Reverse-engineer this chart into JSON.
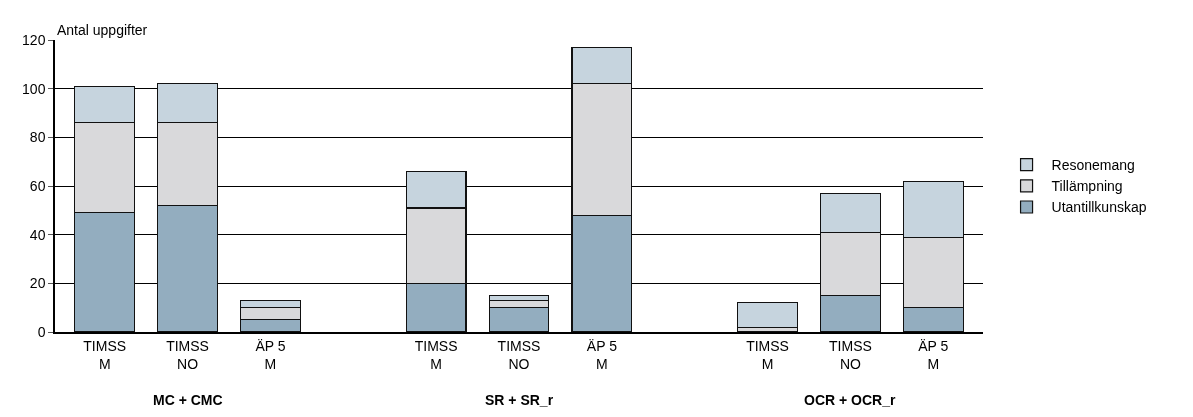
{
  "chart_data": {
    "type": "bar",
    "stacked": true,
    "ylabel": "Antal uppgifter",
    "categories": [
      "TIMSS M",
      "TIMSS NO",
      "ÄP 5 M",
      null,
      "TIMSS M",
      "TIMSS NO",
      "ÄP 5 M",
      null,
      "TIMSS M",
      "TIMSS NO",
      "ÄP 5 M"
    ],
    "series": [
      {
        "name": "Utantillkunskap",
        "color": "#93adbf",
        "values": [
          49,
          52,
          5,
          null,
          20,
          10,
          48,
          null,
          0,
          15,
          10
        ]
      },
      {
        "name": "Tillämpning",
        "color": "#d9d9db",
        "values": [
          37,
          34,
          5,
          null,
          31,
          3,
          54,
          null,
          2,
          26,
          29
        ]
      },
      {
        "name": "Resonemang",
        "color": "#c6d4de",
        "values": [
          15,
          16,
          3,
          null,
          15,
          2,
          15,
          null,
          10,
          16,
          23
        ]
      }
    ],
    "annotations": [
      "MC + CMC",
      "SR + SR_r",
      "OCR + OCR_r"
    ],
    "ylim": [
      0,
      120
    ],
    "yticks": [
      0,
      20,
      40,
      60,
      80,
      100,
      120
    ],
    "grid": "y",
    "legend": "right"
  }
}
